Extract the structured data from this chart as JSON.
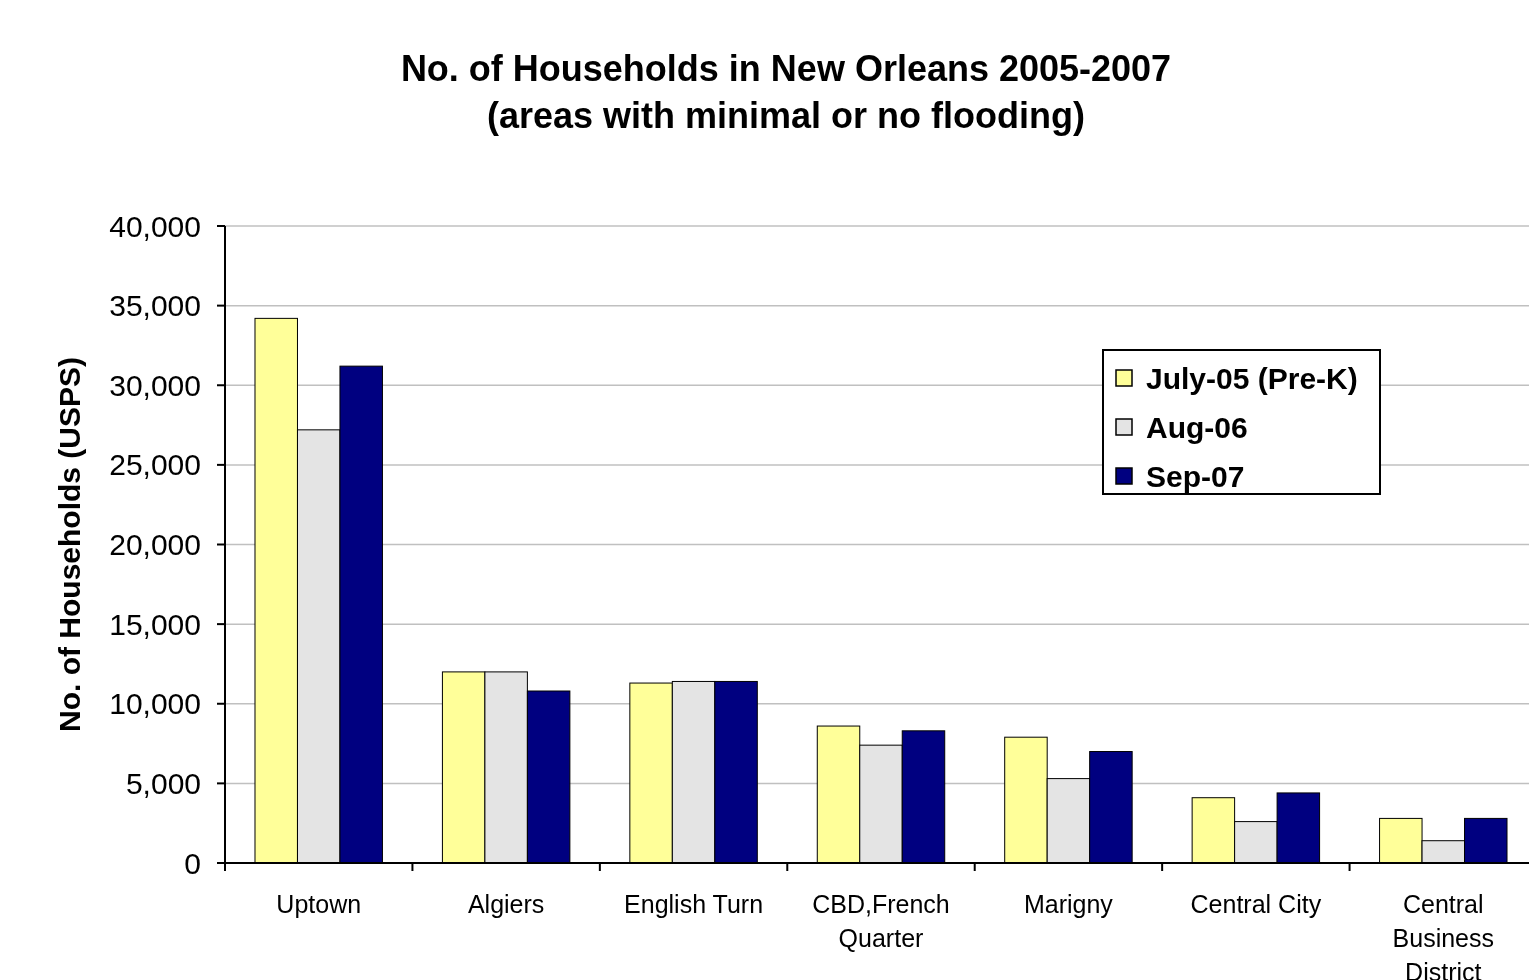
{
  "chart_data": {
    "type": "bar",
    "title": "No. of Households in New Orleans 2005-2007",
    "subtitle": "(areas with minimal or no flooding)",
    "ylabel": "No. of Households (USPS)",
    "categories": [
      "Uptown",
      "Algiers",
      "English Turn",
      "CBD,French Quarter",
      "Marigny",
      "Central City",
      "Central Business District"
    ],
    "series": [
      {
        "name": "July-05 (Pre-K)",
        "color": "#ffff99",
        "values": [
          34200,
          12000,
          11300,
          8600,
          7900,
          4100,
          2800
        ]
      },
      {
        "name": "Aug-06",
        "color": "#e4e4e4",
        "values": [
          27200,
          12000,
          11400,
          7400,
          5300,
          2600,
          1400
        ]
      },
      {
        "name": "Sep-07",
        "color": "#000080",
        "values": [
          31200,
          10800,
          11400,
          8300,
          7000,
          4400,
          2800
        ]
      }
    ],
    "ylim": [
      0,
      40000
    ],
    "yticks": [
      0,
      {
        "value": 5000,
        "label": "5,000"
      },
      {
        "value": 10000,
        "label": "10,000"
      },
      {
        "value": 15000,
        "label": "15,000"
      },
      {
        "value": 20000,
        "label": "20,000"
      },
      {
        "value": 25000,
        "label": "25,000"
      },
      {
        "value": 30000,
        "label": "30,000"
      },
      {
        "value": 35000,
        "label": "35,000"
      },
      {
        "value": 40000,
        "label": "40,000"
      }
    ],
    "grid": "y",
    "legend": "top right"
  }
}
